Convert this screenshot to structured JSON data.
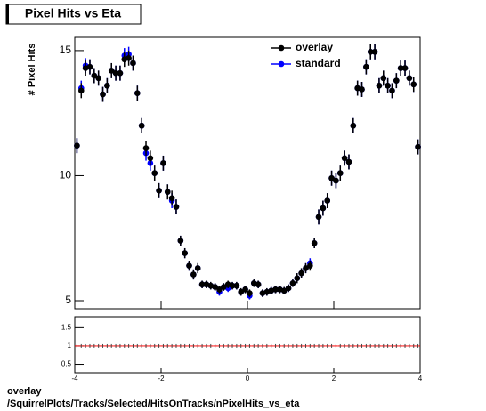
{
  "title": "Pixel Hits vs Eta",
  "footer": [
    "overlay",
    "/SquirrelPlots/Tracks/Selected/HitsOnTracks/nPixelHits_vs_eta"
  ],
  "chart_data": [
    {
      "type": "scatter",
      "y_label": "# Pixel Hits",
      "legend": "top-right",
      "x": [
        -3.95,
        -3.85,
        -3.75,
        -3.65,
        -3.55,
        -3.45,
        -3.35,
        -3.25,
        -3.15,
        -3.05,
        -2.95,
        -2.85,
        -2.75,
        -2.65,
        -2.55,
        -2.45,
        -2.35,
        -2.25,
        -2.15,
        -2.05,
        -1.95,
        -1.85,
        -1.75,
        -1.65,
        -1.55,
        -1.45,
        -1.35,
        -1.25,
        -1.15,
        -1.05,
        -0.95,
        -0.85,
        -0.75,
        -0.65,
        -0.55,
        -0.45,
        -0.35,
        -0.25,
        -0.15,
        -0.05,
        0.05,
        0.15,
        0.25,
        0.35,
        0.45,
        0.55,
        0.65,
        0.75,
        0.85,
        0.95,
        1.05,
        1.15,
        1.25,
        1.35,
        1.45,
        1.55,
        1.65,
        1.75,
        1.85,
        1.95,
        2.05,
        2.15,
        2.25,
        2.35,
        2.45,
        2.55,
        2.65,
        2.75,
        2.85,
        2.95,
        3.05,
        3.15,
        3.25,
        3.35,
        3.45,
        3.55,
        3.65,
        3.75,
        3.85,
        3.95
      ],
      "series": [
        {
          "name": "standard",
          "color": "#0000ff",
          "values": [
            11.2,
            13.5,
            14.4,
            14.35,
            14.0,
            13.9,
            13.25,
            13.6,
            14.2,
            14.1,
            14.1,
            14.8,
            14.85,
            14.5,
            13.3,
            12.0,
            10.9,
            10.5,
            10.1,
            9.4,
            10.5,
            9.35,
            9.0,
            8.75,
            7.4,
            6.9,
            6.4,
            6.05,
            6.3,
            5.65,
            5.65,
            5.6,
            5.55,
            5.35,
            5.55,
            5.5,
            5.6,
            5.6,
            5.35,
            5.45,
            5.2,
            5.7,
            5.65,
            5.3,
            5.35,
            5.4,
            5.45,
            5.45,
            5.4,
            5.5,
            5.7,
            5.9,
            6.1,
            6.3,
            6.5,
            7.3,
            8.35,
            8.7,
            9.0,
            9.9,
            9.8,
            10.1,
            10.7,
            10.55,
            12.0,
            13.5,
            13.45,
            14.35,
            14.95,
            14.95,
            13.6,
            13.9,
            13.6,
            13.4,
            13.8,
            14.3,
            14.3,
            13.9,
            13.65,
            11.15
          ],
          "errors": [
            0.3,
            0.3,
            0.3,
            0.3,
            0.3,
            0.3,
            0.3,
            0.3,
            0.3,
            0.3,
            0.3,
            0.3,
            0.3,
            0.3,
            0.3,
            0.3,
            0.3,
            0.3,
            0.3,
            0.3,
            0.3,
            0.3,
            0.3,
            0.3,
            0.2,
            0.2,
            0.2,
            0.2,
            0.2,
            0.15,
            0.15,
            0.15,
            0.15,
            0.15,
            0.15,
            0.15,
            0.15,
            0.15,
            0.15,
            0.15,
            0.15,
            0.15,
            0.15,
            0.15,
            0.15,
            0.15,
            0.15,
            0.15,
            0.15,
            0.15,
            0.15,
            0.2,
            0.2,
            0.2,
            0.2,
            0.2,
            0.3,
            0.3,
            0.3,
            0.3,
            0.3,
            0.3,
            0.3,
            0.3,
            0.3,
            0.3,
            0.3,
            0.3,
            0.3,
            0.3,
            0.3,
            0.3,
            0.3,
            0.3,
            0.3,
            0.3,
            0.3,
            0.3,
            0.3,
            0.3
          ]
        },
        {
          "name": "overlay",
          "color": "#000000",
          "values": [
            11.2,
            13.4,
            14.3,
            14.35,
            14.0,
            13.9,
            13.25,
            13.6,
            14.2,
            14.1,
            14.1,
            14.65,
            14.7,
            14.5,
            13.3,
            12.0,
            11.1,
            10.7,
            10.1,
            9.4,
            10.5,
            9.35,
            9.1,
            8.75,
            7.4,
            6.9,
            6.4,
            6.05,
            6.3,
            5.65,
            5.65,
            5.6,
            5.55,
            5.45,
            5.55,
            5.65,
            5.6,
            5.6,
            5.35,
            5.45,
            5.3,
            5.7,
            5.65,
            5.3,
            5.35,
            5.4,
            5.45,
            5.45,
            5.4,
            5.5,
            5.7,
            5.9,
            6.1,
            6.3,
            6.4,
            7.3,
            8.35,
            8.7,
            9.0,
            9.9,
            9.8,
            10.1,
            10.7,
            10.55,
            12.0,
            13.5,
            13.45,
            14.35,
            14.95,
            14.95,
            13.6,
            13.9,
            13.6,
            13.4,
            13.8,
            14.3,
            14.3,
            13.9,
            13.65,
            11.15
          ],
          "errors": [
            0.3,
            0.3,
            0.3,
            0.3,
            0.3,
            0.3,
            0.3,
            0.3,
            0.3,
            0.3,
            0.3,
            0.3,
            0.3,
            0.3,
            0.3,
            0.3,
            0.3,
            0.3,
            0.3,
            0.3,
            0.3,
            0.3,
            0.3,
            0.3,
            0.2,
            0.2,
            0.2,
            0.2,
            0.2,
            0.15,
            0.15,
            0.15,
            0.15,
            0.15,
            0.15,
            0.15,
            0.15,
            0.15,
            0.15,
            0.15,
            0.15,
            0.15,
            0.15,
            0.15,
            0.15,
            0.15,
            0.15,
            0.15,
            0.15,
            0.15,
            0.15,
            0.2,
            0.2,
            0.2,
            0.2,
            0.2,
            0.3,
            0.3,
            0.3,
            0.3,
            0.3,
            0.3,
            0.3,
            0.3,
            0.3,
            0.3,
            0.3,
            0.3,
            0.3,
            0.3,
            0.3,
            0.3,
            0.3,
            0.3,
            0.3,
            0.3,
            0.3,
            0.3,
            0.3,
            0.3
          ]
        }
      ],
      "xlim": [
        -4,
        4
      ],
      "xticks": [
        -4,
        -2,
        0,
        2,
        4
      ],
      "ylim": [
        4.68,
        15.53
      ],
      "yticks": [
        5,
        10,
        15
      ]
    },
    {
      "type": "ratio",
      "line_color": "#ff0000",
      "x": [
        -3.95,
        -3.85,
        -3.75,
        -3.65,
        -3.55,
        -3.45,
        -3.35,
        -3.25,
        -3.15,
        -3.05,
        -2.95,
        -2.85,
        -2.75,
        -2.65,
        -2.55,
        -2.45,
        -2.35,
        -2.25,
        -2.15,
        -2.05,
        -1.95,
        -1.85,
        -1.75,
        -1.65,
        -1.55,
        -1.45,
        -1.35,
        -1.25,
        -1.15,
        -1.05,
        -0.95,
        -0.85,
        -0.75,
        -0.65,
        -0.55,
        -0.45,
        -0.35,
        -0.25,
        -0.15,
        -0.05,
        0.05,
        0.15,
        0.25,
        0.35,
        0.45,
        0.55,
        0.65,
        0.75,
        0.85,
        0.95,
        1.05,
        1.15,
        1.25,
        1.35,
        1.45,
        1.55,
        1.65,
        1.75,
        1.85,
        1.95,
        2.05,
        2.15,
        2.25,
        2.35,
        2.45,
        2.55,
        2.65,
        2.75,
        2.85,
        2.95,
        3.05,
        3.15,
        3.25,
        3.35,
        3.45,
        3.55,
        3.65,
        3.75,
        3.85,
        3.95
      ],
      "values": [
        1,
        1,
        1,
        1,
        1,
        1,
        1,
        1,
        1,
        1,
        1,
        1,
        1,
        1,
        1,
        1,
        1,
        1,
        1,
        1,
        1,
        1,
        1,
        1,
        1,
        1,
        1,
        1,
        1,
        1,
        1,
        1,
        1,
        1,
        1,
        1,
        1,
        1,
        1,
        1,
        1,
        1,
        1,
        1,
        1,
        1,
        1,
        1,
        1,
        1,
        1,
        1,
        1,
        1,
        1,
        1,
        1,
        1,
        1,
        1,
        1,
        1,
        1,
        1,
        1,
        1,
        1,
        1,
        1,
        1,
        1,
        1,
        1,
        1,
        1,
        1,
        1,
        1,
        1,
        1
      ],
      "xlim": [
        -4,
        4
      ],
      "xticks": [
        -4,
        -2,
        0,
        2,
        4
      ],
      "ylim": [
        0.27,
        1.8
      ],
      "yticks": [
        0.5,
        1,
        1.5
      ]
    }
  ]
}
